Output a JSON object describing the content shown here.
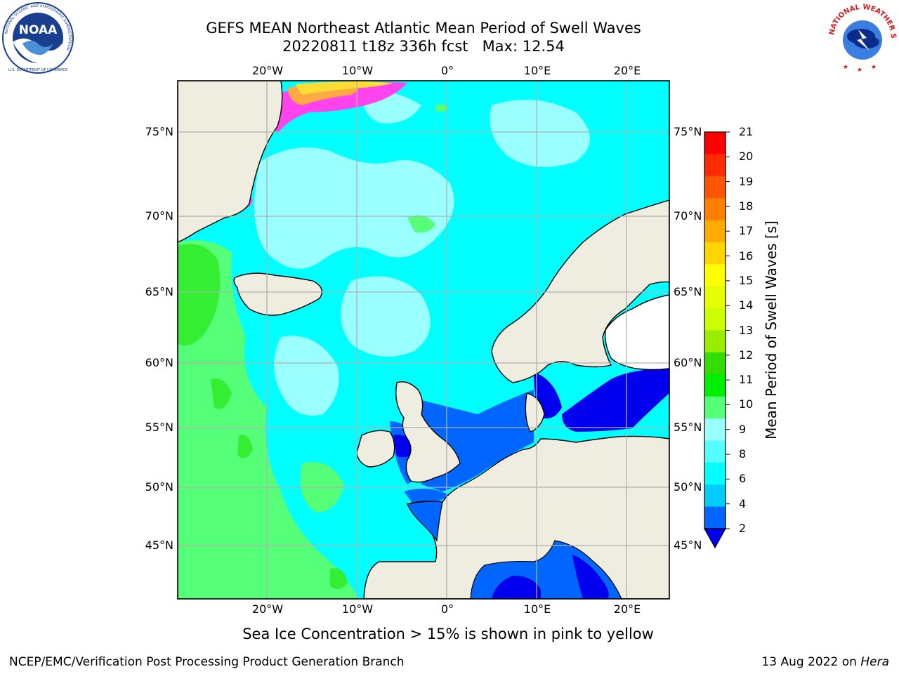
{
  "title": {
    "line1": "GEFS MEAN Northeast Atlantic Mean Period of Swell Waves",
    "line2_date": "20220811 t18z 336h fcst",
    "line2_max": "Max: 12.54"
  },
  "logos": {
    "left": "noaa-logo",
    "left_ring_text": "NATIONAL OCEANIC AND ATMOSPHERIC ADMINISTRATION",
    "left_ring_text_bottom": "U.S. DEPARTMENT OF COMMERCE",
    "left_center": "NOAA",
    "right": "nws-logo",
    "right_ring_text": "NATIONAL WEATHER SERVICE"
  },
  "map": {
    "lon_labels": [
      "20°W",
      "10°W",
      "0°",
      "10°E",
      "20°E"
    ],
    "lat_labels": [
      "75°N",
      "70°N",
      "65°N",
      "60°N",
      "55°N",
      "50°N",
      "45°N"
    ],
    "colors": {
      "land": "#efece0",
      "ocean_base": "#00ffff",
      "swell_8_9": "#99ffff",
      "swell_9_10": "#55ff77",
      "swell_10_11": "#33ee33",
      "swell_2_4": "#0066ff",
      "swell_lt2": "#0000ee",
      "ice_pink": "#ff44ee",
      "ice_yellow": "#ffdd33",
      "grid": "#b0b0b0"
    }
  },
  "colorbar": {
    "label": "Mean Period of Swell Waves [s]",
    "ticks": [
      "21",
      "20",
      "19",
      "18",
      "17",
      "16",
      "15",
      "14",
      "13",
      "12",
      "11",
      "10",
      "9",
      "8",
      "6",
      "4",
      "2"
    ],
    "colors": [
      "#ff0000",
      "#ff2a00",
      "#ff5500",
      "#ff8000",
      "#ffaa00",
      "#ffd500",
      "#ffff00",
      "#e5ff00",
      "#ccff00",
      "#99ee00",
      "#33dd00",
      "#00ee00",
      "#55ff77",
      "#99ffff",
      "#55ffff",
      "#00ffff",
      "#00ccff",
      "#0066ff"
    ],
    "under_color": "#0000ee"
  },
  "subtitle": "Sea Ice Concentration > 15% is shown in pink to yellow",
  "footer": {
    "left": "NCEP/EMC/Verification Post Processing Product Generation Branch",
    "right_date": "13 Aug 2022 on ",
    "right_host": "Hera"
  }
}
